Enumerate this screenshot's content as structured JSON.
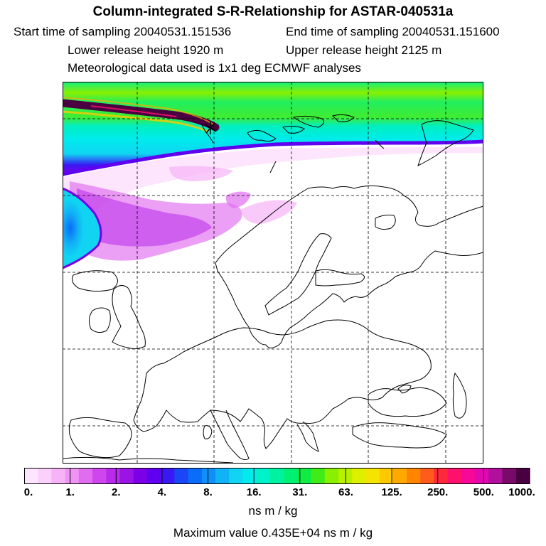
{
  "title": "Column-integrated S-R-Relationship for ASTAR-040531a",
  "header": {
    "start": "Start time of sampling 20040531.151536",
    "end": "End time of sampling 20040531.151600",
    "lower": "Lower release height 1920 m",
    "upper": "Upper release height 2125 m",
    "met": "Meteorological data used is 1x1 deg ECMWF analyses"
  },
  "colorbar": {
    "tick_labels": [
      "0.",
      "1.",
      "2.",
      "4.",
      "8.",
      "16.",
      "31.",
      "63.",
      "125.",
      "250.",
      "500.",
      "1000."
    ],
    "units": "ns m / kg",
    "colors": [
      "#fde6fd",
      "#fbd0fb",
      "#f6b3f7",
      "#ef94f3",
      "#e06cf0",
      "#cf46ee",
      "#b82bea",
      "#9a14e6",
      "#7b00e8",
      "#5f00f0",
      "#3a18f4",
      "#1a46f6",
      "#0a6cf8",
      "#0f8ff8",
      "#12b2f6",
      "#10d4f2",
      "#00ecec",
      "#00f2c8",
      "#00f2a0",
      "#00f074",
      "#10ec44",
      "#40ec18",
      "#88f000",
      "#b8f000",
      "#dcf000",
      "#f4e400",
      "#ffc800",
      "#ffa800",
      "#ff8400",
      "#ff5c1c",
      "#ff283c",
      "#ff106c",
      "#f80898",
      "#e008b0",
      "#b0109c",
      "#7a0a6a",
      "#4a0040"
    ]
  },
  "max_value": "Maximum value  0.435E+04 ns m / kg"
}
